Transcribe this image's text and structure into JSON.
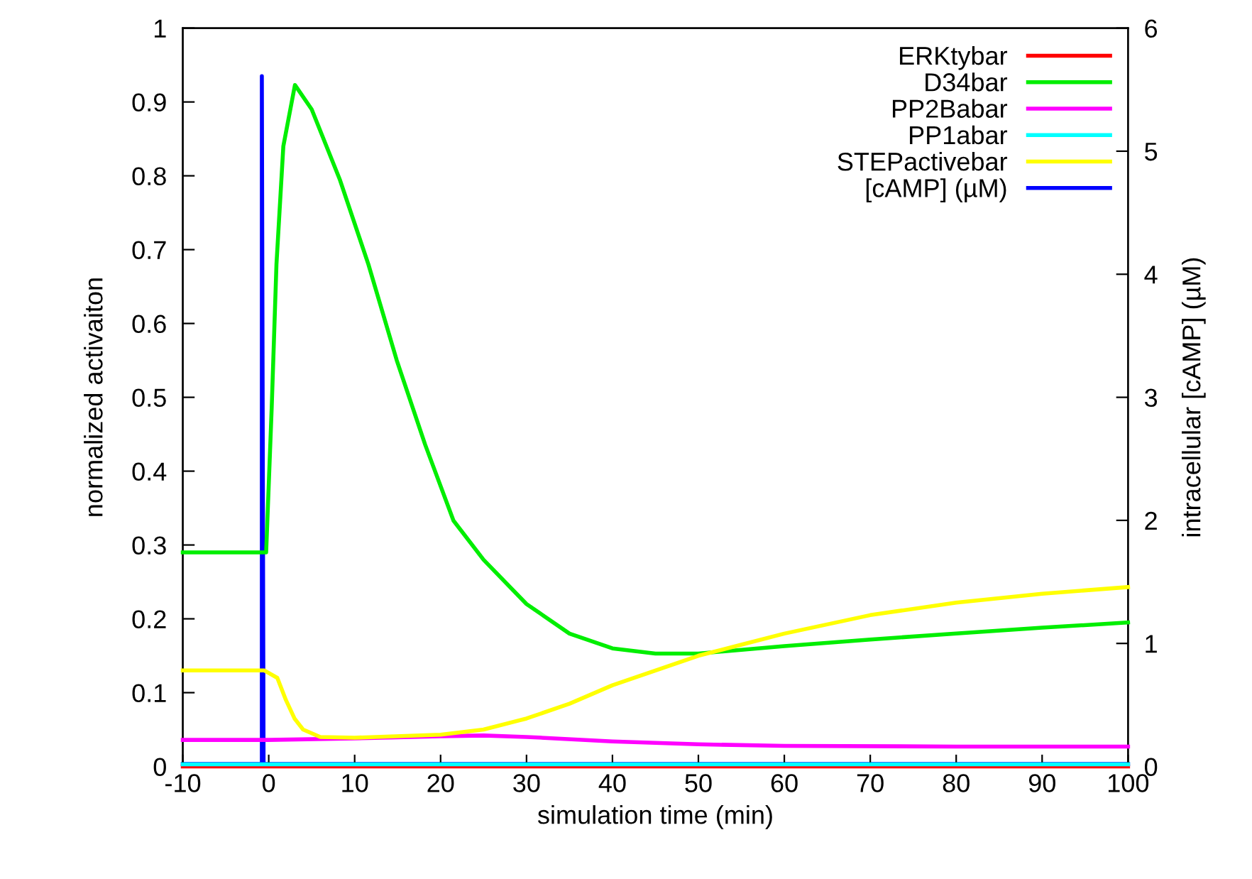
{
  "chart_data": {
    "type": "line",
    "xlabel": "simulation time (min)",
    "ylabel": "normalized activaiton",
    "y2label": "intracellular [cAMP] (µM)",
    "xlim": [
      -10,
      100
    ],
    "xticks": [
      -10,
      0,
      10,
      20,
      30,
      40,
      50,
      60,
      70,
      80,
      90,
      100
    ],
    "ylim": [
      0,
      1
    ],
    "yticks": [
      0,
      0.1,
      0.2,
      0.3,
      0.4,
      0.5,
      0.6,
      0.7,
      0.8,
      0.9,
      1
    ],
    "y2lim": [
      0,
      6
    ],
    "y2ticks": [
      0,
      1,
      2,
      3,
      4,
      5,
      6
    ],
    "grid": false,
    "legend": "top right",
    "marker": "none",
    "line_style": "solid",
    "series": [
      {
        "name": "ERKtybar",
        "color": "#ff0000",
        "x": [
          -10,
          100
        ],
        "values": [
          0,
          0
        ]
      },
      {
        "name": "D34bar",
        "color": "#00ee00",
        "x": [
          -10,
          -0.3,
          0.35,
          0.9,
          1.7,
          3.05,
          5.0,
          8.3,
          11.6,
          14.9,
          18.2,
          21.5,
          25,
          30,
          35,
          40,
          45,
          50,
          60,
          70,
          80,
          90,
          100
        ],
        "values": [
          0.29,
          0.29,
          0.487,
          0.68,
          0.84,
          0.923,
          0.89,
          0.794,
          0.68,
          0.55,
          0.436,
          0.333,
          0.28,
          0.22,
          0.18,
          0.16,
          0.153,
          0.153,
          0.163,
          0.172,
          0.18,
          0.188,
          0.195
        ]
      },
      {
        "name": "PP2Babar",
        "color": "#ff00ff",
        "x": [
          -10,
          0,
          10,
          20,
          25,
          30,
          40,
          50,
          60,
          80,
          100
        ],
        "values": [
          0.036,
          0.036,
          0.038,
          0.041,
          0.042,
          0.04,
          0.034,
          0.03,
          0.028,
          0.027,
          0.027
        ]
      },
      {
        "name": "PP1abar",
        "color": "#00ffff",
        "x": [
          -10,
          100
        ],
        "values": [
          0.003,
          0.003
        ]
      },
      {
        "name": "STEPactivebar",
        "color": "#ffff00",
        "x": [
          -10,
          -0.5,
          1,
          2,
          3,
          4,
          6,
          10,
          20,
          25,
          30,
          35,
          40,
          45,
          50,
          55,
          60,
          70,
          80,
          90,
          100
        ],
        "values": [
          0.13,
          0.13,
          0.12,
          0.09,
          0.065,
          0.05,
          0.04,
          0.039,
          0.043,
          0.05,
          0.065,
          0.085,
          0.11,
          0.13,
          0.15,
          0.165,
          0.18,
          0.205,
          0.222,
          0.234,
          0.243
        ]
      },
      {
        "name": "[cAMP] (µM)",
        "color": "#0000ff",
        "axis": "y2",
        "x": [
          -10,
          -0.8,
          -0.8,
          -0.6,
          100
        ],
        "values": [
          0.02,
          0.02,
          5.61,
          0.02,
          0.02
        ]
      }
    ]
  }
}
